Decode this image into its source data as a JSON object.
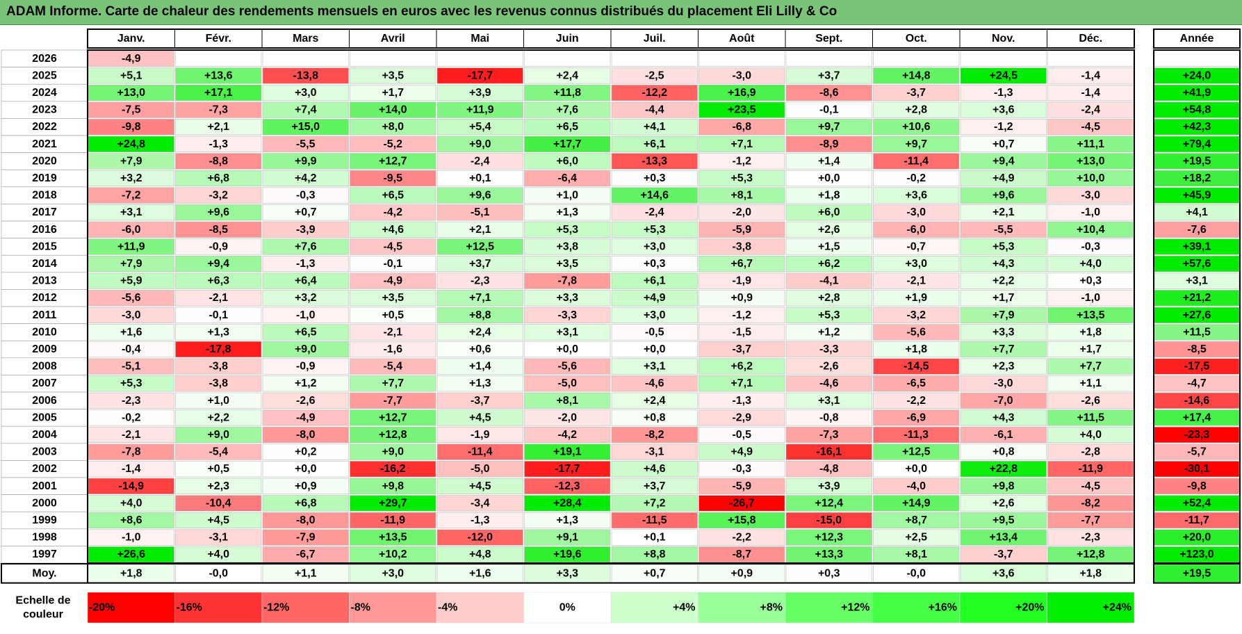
{
  "title": "ADAM Informe. Carte de chaleur des rendements mensuels en euros avec les revenus connus distribués du placement Eli Lilly & Co",
  "chart_data": {
    "type": "heatmap",
    "months": [
      "Janv.",
      "Févr.",
      "Mars",
      "Avril",
      "Mai",
      "Juin",
      "Juil.",
      "Août",
      "Sept.",
      "Oct.",
      "Nov.",
      "Déc."
    ],
    "annual_header": "Année",
    "rows": [
      {
        "year": "2026",
        "values": [
          "-4,9",
          "",
          "",
          "",
          "",
          "",
          "",
          "",
          "",
          "",
          "",
          ""
        ],
        "annual": ""
      },
      {
        "year": "2025",
        "values": [
          "+5,1",
          "+13,6",
          "-13,8",
          "+3,5",
          "-17,7",
          "+2,4",
          "-2,5",
          "-3,0",
          "+3,7",
          "+14,8",
          "+24,5",
          "-1,4"
        ],
        "annual": "+24,0"
      },
      {
        "year": "2024",
        "values": [
          "+13,0",
          "+17,1",
          "+3,0",
          "+1,7",
          "+3,9",
          "+11,8",
          "-12,2",
          "+16,9",
          "-8,6",
          "-3,7",
          "-1,3",
          "-1,4"
        ],
        "annual": "+41,9"
      },
      {
        "year": "2023",
        "values": [
          "-7,5",
          "-7,3",
          "+7,4",
          "+14,0",
          "+11,9",
          "+7,6",
          "-4,4",
          "+23,5",
          "-0,1",
          "+2,8",
          "+3,6",
          "-2,4"
        ],
        "annual": "+54,8"
      },
      {
        "year": "2022",
        "values": [
          "-9,8",
          "+2,1",
          "+15,0",
          "+8,0",
          "+5,4",
          "+6,5",
          "+4,1",
          "-6,8",
          "+9,7",
          "+10,6",
          "-1,2",
          "-4,5"
        ],
        "annual": "+42,3"
      },
      {
        "year": "2021",
        "values": [
          "+24,8",
          "-1,3",
          "-5,5",
          "-5,2",
          "+9,0",
          "+17,7",
          "+6,1",
          "+7,1",
          "-8,9",
          "+9,7",
          "+0,7",
          "+11,1"
        ],
        "annual": "+79,4"
      },
      {
        "year": "2020",
        "values": [
          "+7,9",
          "-8,8",
          "+9,9",
          "+12,7",
          "-2,4",
          "+6,0",
          "-13,3",
          "-1,2",
          "+1,4",
          "-11,4",
          "+9,4",
          "+13,0"
        ],
        "annual": "+19,5"
      },
      {
        "year": "2019",
        "values": [
          "+3,2",
          "+6,8",
          "+4,2",
          "-9,5",
          "+0,1",
          "-6,4",
          "+0,3",
          "+5,3",
          "+0,0",
          "-0,2",
          "+4,9",
          "+10,0"
        ],
        "annual": "+18,2"
      },
      {
        "year": "2018",
        "values": [
          "-7,2",
          "-3,2",
          "-0,3",
          "+6,5",
          "+9,6",
          "+1,0",
          "+14,6",
          "+8,1",
          "+1,8",
          "+3,6",
          "+9,6",
          "-3,0"
        ],
        "annual": "+45,9"
      },
      {
        "year": "2017",
        "values": [
          "+3,1",
          "+9,6",
          "+0,7",
          "-4,2",
          "-5,1",
          "+1,3",
          "-2,4",
          "-2,0",
          "+6,0",
          "-3,0",
          "+2,1",
          "-1,0"
        ],
        "annual": "+4,1"
      },
      {
        "year": "2016",
        "values": [
          "-6,0",
          "-8,5",
          "-3,9",
          "+4,6",
          "+2,1",
          "+5,3",
          "+5,3",
          "-5,9",
          "+2,6",
          "-6,0",
          "-5,5",
          "+10,4"
        ],
        "annual": "-7,6"
      },
      {
        "year": "2015",
        "values": [
          "+11,9",
          "-0,9",
          "+7,6",
          "-4,5",
          "+12,5",
          "+3,8",
          "+3,0",
          "-3,8",
          "+1,5",
          "-0,7",
          "+5,3",
          "-0,3"
        ],
        "annual": "+39,1"
      },
      {
        "year": "2014",
        "values": [
          "+7,9",
          "+9,4",
          "-1,3",
          "-0,1",
          "+3,7",
          "+3,5",
          "+0,3",
          "+6,7",
          "+6,2",
          "+3,0",
          "+4,3",
          "+4,0"
        ],
        "annual": "+57,6"
      },
      {
        "year": "2013",
        "values": [
          "+5,9",
          "+6,3",
          "+6,4",
          "-4,9",
          "-2,3",
          "-7,8",
          "+6,1",
          "-1,9",
          "-4,1",
          "-2,1",
          "+2,2",
          "+0,3"
        ],
        "annual": "+3,1"
      },
      {
        "year": "2012",
        "values": [
          "-5,6",
          "-2,1",
          "+3,2",
          "+3,5",
          "+7,1",
          "+3,3",
          "+4,9",
          "+0,9",
          "+2,8",
          "+1,9",
          "+1,7",
          "-1,0"
        ],
        "annual": "+21,2"
      },
      {
        "year": "2011",
        "values": [
          "-3,0",
          "-0,1",
          "-1,0",
          "+0,5",
          "+8,8",
          "-3,3",
          "+3,0",
          "-1,2",
          "+5,3",
          "-3,2",
          "+7,9",
          "+13,5"
        ],
        "annual": "+27,6"
      },
      {
        "year": "2010",
        "values": [
          "+1,6",
          "+1,3",
          "+6,5",
          "-2,1",
          "+2,4",
          "+3,1",
          "-0,5",
          "-1,5",
          "+1,2",
          "-5,6",
          "+3,3",
          "+1,8"
        ],
        "annual": "+11,5"
      },
      {
        "year": "2009",
        "values": [
          "-0,4",
          "-17,8",
          "+9,0",
          "-1,6",
          "+0,6",
          "+0,0",
          "+0,0",
          "-3,7",
          "-3,3",
          "+1,8",
          "+7,7",
          "+1,7"
        ],
        "annual": "-8,5"
      },
      {
        "year": "2008",
        "values": [
          "-5,1",
          "-3,8",
          "-0,9",
          "-5,4",
          "+1,4",
          "-5,6",
          "+3,1",
          "+6,2",
          "-2,6",
          "-14,5",
          "+2,3",
          "+7,7"
        ],
        "annual": "-17,5"
      },
      {
        "year": "2007",
        "values": [
          "+5,3",
          "-3,8",
          "+1,2",
          "+7,7",
          "+1,3",
          "-5,0",
          "-4,6",
          "+7,1",
          "-4,6",
          "-6,5",
          "-3,0",
          "+1,1"
        ],
        "annual": "-4,7"
      },
      {
        "year": "2006",
        "values": [
          "-2,3",
          "+1,0",
          "-2,6",
          "-7,7",
          "-3,7",
          "+8,1",
          "+2,4",
          "-1,3",
          "+3,1",
          "-2,2",
          "-7,0",
          "-2,6"
        ],
        "annual": "-14,6"
      },
      {
        "year": "2005",
        "values": [
          "-0,2",
          "+2,2",
          "-4,9",
          "+12,7",
          "+4,5",
          "-2,0",
          "+0,8",
          "-2,9",
          "-0,8",
          "-6,9",
          "+4,3",
          "+11,5"
        ],
        "annual": "+17,4"
      },
      {
        "year": "2004",
        "values": [
          "-2,1",
          "+9,0",
          "-8,0",
          "+12,8",
          "-1,9",
          "-4,2",
          "-8,2",
          "-0,5",
          "-7,3",
          "-11,3",
          "-6,1",
          "+4,0"
        ],
        "annual": "-23,3"
      },
      {
        "year": "2003",
        "values": [
          "-7,8",
          "-5,4",
          "+0,2",
          "+9,0",
          "-11,4",
          "+19,1",
          "-3,1",
          "+4,9",
          "-16,1",
          "+12,5",
          "+0,8",
          "-2,8"
        ],
        "annual": "-5,7"
      },
      {
        "year": "2002",
        "values": [
          "-1,4",
          "+0,5",
          "+0,0",
          "-16,2",
          "-5,0",
          "-17,7",
          "+4,6",
          "-0,3",
          "-4,8",
          "+0,0",
          "+22,8",
          "-11,9"
        ],
        "annual": "-30,1"
      },
      {
        "year": "2001",
        "values": [
          "-14,9",
          "+2,3",
          "+0,9",
          "+9,8",
          "+4,5",
          "-12,3",
          "+3,7",
          "-5,9",
          "+3,9",
          "-4,0",
          "+9,8",
          "-4,5"
        ],
        "annual": "-9,8"
      },
      {
        "year": "2000",
        "values": [
          "+4,0",
          "-10,4",
          "+6,8",
          "+29,7",
          "-3,4",
          "+28,4",
          "+7,2",
          "-26,7",
          "+12,4",
          "+14,9",
          "+2,6",
          "-8,2"
        ],
        "annual": "+52,4"
      },
      {
        "year": "1999",
        "values": [
          "+8,6",
          "+4,5",
          "-8,0",
          "-11,9",
          "-1,3",
          "+1,3",
          "-11,5",
          "+15,8",
          "-15,0",
          "+8,7",
          "+9,5",
          "-7,7"
        ],
        "annual": "-11,7"
      },
      {
        "year": "1998",
        "values": [
          "-1,0",
          "-3,1",
          "-7,9",
          "+13,5",
          "-12,0",
          "+9,1",
          "+0,1",
          "-2,2",
          "+12,3",
          "+2,5",
          "+13,4",
          "-2,3"
        ],
        "annual": "+20,0"
      },
      {
        "year": "1997",
        "values": [
          "+26,6",
          "+4,0",
          "-6,7",
          "+10,2",
          "+4,8",
          "+19,6",
          "+8,8",
          "-8,7",
          "+13,3",
          "+8,1",
          "-3,7",
          "+12,8"
        ],
        "annual": "+123,0"
      }
    ],
    "average": {
      "label": "Moy.",
      "values": [
        "+1,8",
        "-0,0",
        "+1,1",
        "+3,0",
        "+1,6",
        "+3,3",
        "+0,7",
        "+0,9",
        "+0,3",
        "-0,0",
        "+3,6",
        "+1,8"
      ],
      "annual": "+19,5"
    },
    "scale": {
      "label_lines": [
        "Echelle de",
        "couleur"
      ],
      "steps": [
        {
          "label": "-20%",
          "value": -20,
          "color": "#ff0000"
        },
        {
          "label": "-16%",
          "value": -16,
          "color": "#ff3333"
        },
        {
          "label": "-12%",
          "value": -12,
          "color": "#ff6666"
        },
        {
          "label": "-8%",
          "value": -8,
          "color": "#ff9999"
        },
        {
          "label": "-4%",
          "value": -4,
          "color": "#ffcccc"
        },
        {
          "label": "0%",
          "value": 0,
          "color": "#ffffff"
        },
        {
          "label": "+4%",
          "value": 4,
          "color": "#ccffcc"
        },
        {
          "label": "+8%",
          "value": 8,
          "color": "#99ff99"
        },
        {
          "label": "+12%",
          "value": 12,
          "color": "#66ff66"
        },
        {
          "label": "+16%",
          "value": 16,
          "color": "#44ff44"
        },
        {
          "label": "+20%",
          "value": 20,
          "color": "#22ff22"
        },
        {
          "label": "+24%",
          "value": 24,
          "color": "#00ee00"
        }
      ]
    },
    "colors": {
      "negative_max": "#ff0000",
      "neutral": "#ffffff",
      "positive_max": "#00e600",
      "title_bar": "#7ac47a"
    }
  }
}
